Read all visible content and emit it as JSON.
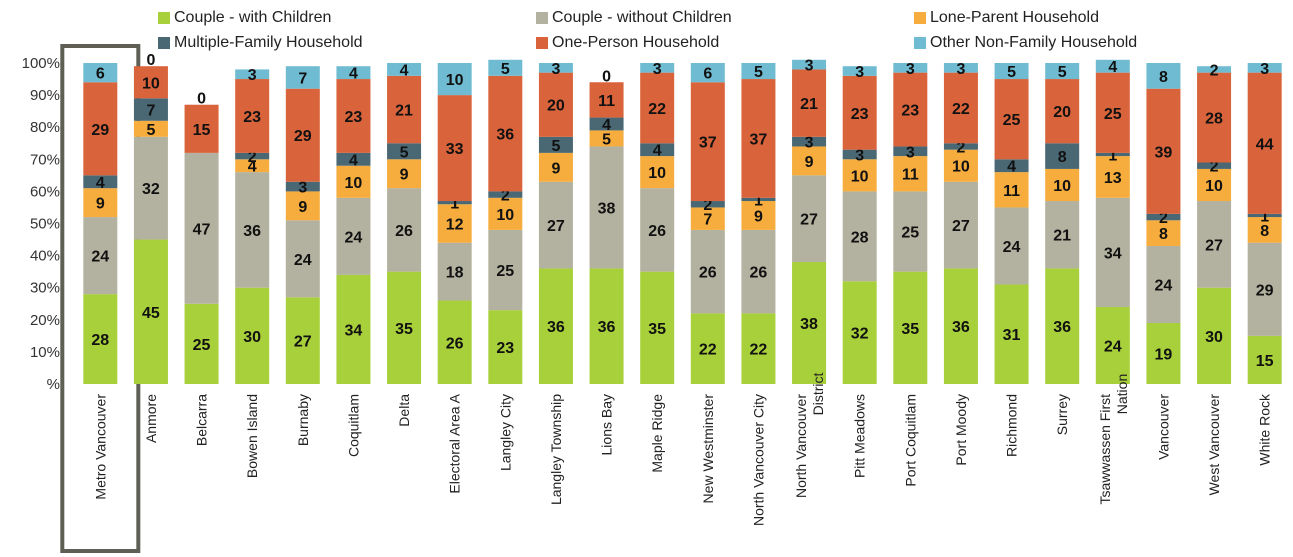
{
  "chart_data": {
    "type": "bar",
    "stacked": true,
    "title": "",
    "xlabel": "",
    "ylabel": "",
    "ylim": [
      0,
      100
    ],
    "y_ticks": [
      "%",
      "10%",
      "20%",
      "30%",
      "40%",
      "50%",
      "60%",
      "70%",
      "80%",
      "90%",
      "100%"
    ],
    "grid": false,
    "legend_position": "top",
    "highlighted_category": "Metro Vancouver",
    "highlight_color": "#5f5f56",
    "categories": [
      "Metro Vancouver",
      "Anmore",
      "Belcarra",
      "Bowen Island",
      "Burnaby",
      "Coquitlam",
      "Delta",
      "Electoral Area A",
      "Langley City",
      "Langley Township",
      "Lions Bay",
      "Maple Ridge",
      "New Westminster",
      "North Vancouver City",
      "North Vancouver District",
      "Pitt Meadows",
      "Port Coquitlam",
      "Port Moody",
      "Richmond",
      "Surrey",
      "Tsawwassen First Nation",
      "Vancouver",
      "West Vancouver",
      "White Rock"
    ],
    "series": [
      {
        "name": "Couple - with Children",
        "color": "#a8d03a",
        "values": [
          28,
          45,
          25,
          30,
          27,
          34,
          35,
          26,
          23,
          36,
          36,
          35,
          22,
          22,
          38,
          32,
          35,
          36,
          31,
          36,
          24,
          19,
          30,
          15
        ]
      },
      {
        "name": "Couple - without Children",
        "color": "#b3b19f",
        "values": [
          24,
          32,
          47,
          36,
          24,
          24,
          26,
          18,
          25,
          27,
          38,
          26,
          26,
          26,
          27,
          28,
          25,
          27,
          24,
          21,
          34,
          24,
          27,
          29
        ]
      },
      {
        "name": "Lone-Parent Household",
        "color": "#f6ad3d",
        "values": [
          9,
          5,
          0,
          4,
          9,
          10,
          9,
          12,
          10,
          9,
          5,
          10,
          7,
          9,
          9,
          10,
          11,
          10,
          11,
          10,
          13,
          8,
          10,
          8
        ]
      },
      {
        "name": "Multiple-Family Household",
        "color": "#4a6774",
        "values": [
          4,
          7,
          0,
          2,
          3,
          4,
          5,
          1,
          2,
          5,
          4,
          4,
          2,
          1,
          3,
          3,
          3,
          2,
          4,
          8,
          1,
          2,
          2,
          1
        ]
      },
      {
        "name": "One-Person Household",
        "color": "#d9633a",
        "values": [
          29,
          10,
          15,
          23,
          29,
          23,
          21,
          33,
          36,
          20,
          11,
          22,
          37,
          37,
          21,
          23,
          23,
          22,
          25,
          20,
          25,
          39,
          28,
          44
        ]
      },
      {
        "name": "Other Non-Family Household",
        "color": "#6fbcd2",
        "values": [
          6,
          0,
          0,
          3,
          7,
          4,
          4,
          10,
          5,
          3,
          0,
          3,
          6,
          5,
          3,
          3,
          3,
          3,
          5,
          5,
          4,
          8,
          2,
          3
        ]
      }
    ]
  }
}
